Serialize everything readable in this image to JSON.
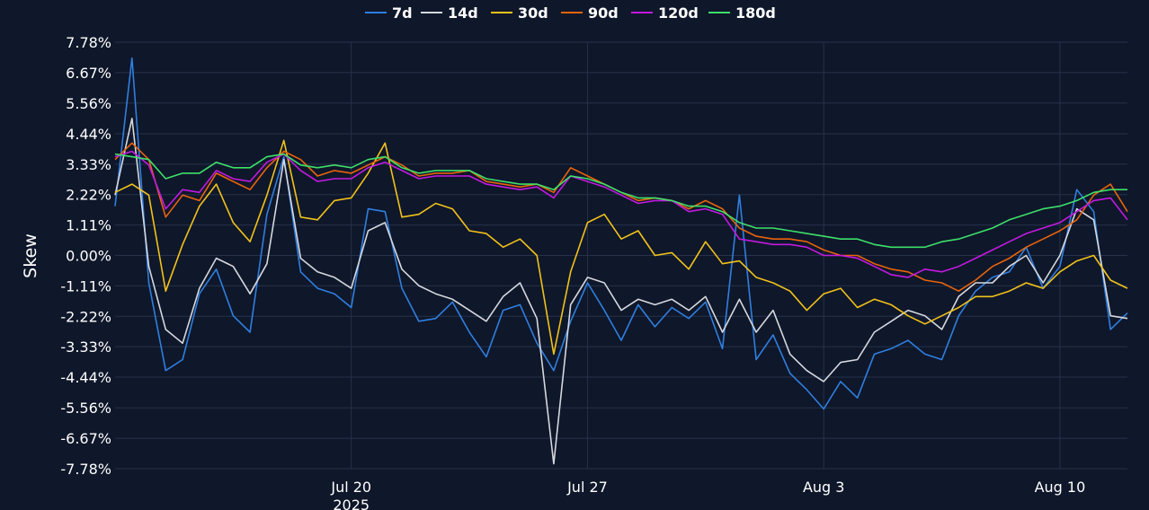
{
  "chart_data": {
    "type": "line",
    "title": "",
    "xlabel": "",
    "ylabel": "Skew",
    "legend_position": "top-center",
    "grid": true,
    "background": "#0f172a",
    "x_range": [
      "2025-07-13",
      "2025-08-12"
    ],
    "ylim": [
      -7.78,
      7.78
    ],
    "y_ticks": [
      "7.78%",
      "6.67%",
      "5.56%",
      "4.44%",
      "3.33%",
      "2.22%",
      "1.11%",
      "0.00%",
      "-1.11%",
      "-2.22%",
      "-3.33%",
      "-4.44%",
      "-5.56%",
      "-6.67%",
      "-7.78%"
    ],
    "x_ticks": [
      {
        "date": "2025-07-20",
        "label": "Jul 20",
        "sublabel": "2025"
      },
      {
        "date": "2025-07-27",
        "label": "Jul 27",
        "sublabel": ""
      },
      {
        "date": "2025-08-03",
        "label": "Aug 3",
        "sublabel": ""
      },
      {
        "date": "2025-08-10",
        "label": "Aug 10",
        "sublabel": ""
      }
    ],
    "series": [
      {
        "name": "7d",
        "color": "#2f7fe0",
        "x": [
          "2025-07-13",
          "2025-07-13T12:00",
          "2025-07-14",
          "2025-07-14T12:00",
          "2025-07-15",
          "2025-07-15T12:00",
          "2025-07-16",
          "2025-07-16T12:00",
          "2025-07-17",
          "2025-07-17T12:00",
          "2025-07-18",
          "2025-07-18T12:00",
          "2025-07-19",
          "2025-07-19T12:00",
          "2025-07-20",
          "2025-07-20T12:00",
          "2025-07-21",
          "2025-07-21T12:00",
          "2025-07-22",
          "2025-07-22T12:00",
          "2025-07-23",
          "2025-07-23T12:00",
          "2025-07-24",
          "2025-07-24T12:00",
          "2025-07-25",
          "2025-07-25T12:00",
          "2025-07-26",
          "2025-07-26T12:00",
          "2025-07-27",
          "2025-07-27T12:00",
          "2025-07-28",
          "2025-07-28T12:00",
          "2025-07-29",
          "2025-07-29T12:00",
          "2025-07-30",
          "2025-07-30T12:00",
          "2025-07-31",
          "2025-07-31T12:00",
          "2025-08-01",
          "2025-08-01T12:00",
          "2025-08-02",
          "2025-08-02T12:00",
          "2025-08-03",
          "2025-08-03T12:00",
          "2025-08-04",
          "2025-08-04T12:00",
          "2025-08-05",
          "2025-08-05T12:00",
          "2025-08-06",
          "2025-08-06T12:00",
          "2025-08-07",
          "2025-08-07T12:00",
          "2025-08-08",
          "2025-08-08T12:00",
          "2025-08-09",
          "2025-08-09T12:00",
          "2025-08-10",
          "2025-08-10T12:00",
          "2025-08-11",
          "2025-08-11T12:00",
          "2025-08-12"
        ],
        "values": [
          1.8,
          7.2,
          -1.0,
          -4.2,
          -3.8,
          -1.4,
          -0.5,
          -2.2,
          -2.8,
          1.5,
          3.6,
          -0.6,
          -1.2,
          -1.4,
          -1.9,
          1.7,
          1.6,
          -1.2,
          -2.4,
          -2.3,
          -1.7,
          -2.8,
          -3.7,
          -2.0,
          -1.8,
          -3.2,
          -4.2,
          -2.4,
          -1.0,
          -2.0,
          -3.1,
          -1.8,
          -2.6,
          -1.9,
          -2.3,
          -1.7,
          -3.4,
          2.2,
          -3.8,
          -2.9,
          -4.3,
          -4.9,
          -5.6,
          -4.6,
          -5.2,
          -3.6,
          -3.4,
          -3.1,
          -3.6,
          -3.8,
          -2.2,
          -1.3,
          -0.8,
          -0.6,
          0.3,
          -1.2,
          -0.4,
          2.4,
          1.6,
          -2.7,
          -2.1
        ]
      },
      {
        "name": "14d",
        "color": "#d5d8de",
        "x": [
          "2025-07-13",
          "2025-07-13T12:00",
          "2025-07-14",
          "2025-07-14T12:00",
          "2025-07-15",
          "2025-07-15T12:00",
          "2025-07-16",
          "2025-07-16T12:00",
          "2025-07-17",
          "2025-07-17T12:00",
          "2025-07-18",
          "2025-07-18T12:00",
          "2025-07-19",
          "2025-07-19T12:00",
          "2025-07-20",
          "2025-07-20T12:00",
          "2025-07-21",
          "2025-07-21T12:00",
          "2025-07-22",
          "2025-07-22T12:00",
          "2025-07-23",
          "2025-07-23T12:00",
          "2025-07-24",
          "2025-07-24T12:00",
          "2025-07-25",
          "2025-07-25T12:00",
          "2025-07-26",
          "2025-07-26T12:00",
          "2025-07-27",
          "2025-07-27T12:00",
          "2025-07-28",
          "2025-07-28T12:00",
          "2025-07-29",
          "2025-07-29T12:00",
          "2025-07-30",
          "2025-07-30T12:00",
          "2025-07-31",
          "2025-07-31T12:00",
          "2025-08-01",
          "2025-08-01T12:00",
          "2025-08-02",
          "2025-08-02T12:00",
          "2025-08-03",
          "2025-08-03T12:00",
          "2025-08-04",
          "2025-08-04T12:00",
          "2025-08-05",
          "2025-08-05T12:00",
          "2025-08-06",
          "2025-08-06T12:00",
          "2025-08-07",
          "2025-08-07T12:00",
          "2025-08-08",
          "2025-08-08T12:00",
          "2025-08-09",
          "2025-08-09T12:00",
          "2025-08-10",
          "2025-08-10T12:00",
          "2025-08-11",
          "2025-08-11T12:00",
          "2025-08-12"
        ],
        "values": [
          2.2,
          5.0,
          -0.4,
          -2.7,
          -3.2,
          -1.2,
          -0.1,
          -0.4,
          -1.4,
          -0.3,
          3.5,
          -0.1,
          -0.6,
          -0.8,
          -1.2,
          0.9,
          1.2,
          -0.5,
          -1.1,
          -1.4,
          -1.6,
          -2.0,
          -2.4,
          -1.5,
          -1.0,
          -2.3,
          -7.6,
          -1.8,
          -0.8,
          -1.0,
          -2.0,
          -1.6,
          -1.8,
          -1.6,
          -2.0,
          -1.5,
          -2.8,
          -1.6,
          -2.8,
          -2.0,
          -3.6,
          -4.2,
          -4.6,
          -3.9,
          -3.8,
          -2.8,
          -2.4,
          -2.0,
          -2.2,
          -2.7,
          -1.5,
          -1.0,
          -1.0,
          -0.4,
          0.0,
          -1.0,
          0.0,
          1.7,
          1.3,
          -2.2,
          -2.3
        ]
      },
      {
        "name": "30d",
        "color": "#f1c21b",
        "x": [
          "2025-07-13",
          "2025-07-13T12:00",
          "2025-07-14",
          "2025-07-14T12:00",
          "2025-07-15",
          "2025-07-15T12:00",
          "2025-07-16",
          "2025-07-16T12:00",
          "2025-07-17",
          "2025-07-17T12:00",
          "2025-07-18",
          "2025-07-18T12:00",
          "2025-07-19",
          "2025-07-19T12:00",
          "2025-07-20",
          "2025-07-20T12:00",
          "2025-07-21",
          "2025-07-21T12:00",
          "2025-07-22",
          "2025-07-22T12:00",
          "2025-07-23",
          "2025-07-23T12:00",
          "2025-07-24",
          "2025-07-24T12:00",
          "2025-07-25",
          "2025-07-25T12:00",
          "2025-07-26",
          "2025-07-26T12:00",
          "2025-07-27",
          "2025-07-27T12:00",
          "2025-07-28",
          "2025-07-28T12:00",
          "2025-07-29",
          "2025-07-29T12:00",
          "2025-07-30",
          "2025-07-30T12:00",
          "2025-07-31",
          "2025-07-31T12:00",
          "2025-08-01",
          "2025-08-01T12:00",
          "2025-08-02",
          "2025-08-02T12:00",
          "2025-08-03",
          "2025-08-03T12:00",
          "2025-08-04",
          "2025-08-04T12:00",
          "2025-08-05",
          "2025-08-05T12:00",
          "2025-08-06",
          "2025-08-06T12:00",
          "2025-08-07",
          "2025-08-07T12:00",
          "2025-08-08",
          "2025-08-08T12:00",
          "2025-08-09",
          "2025-08-09T12:00",
          "2025-08-10",
          "2025-08-10T12:00",
          "2025-08-11",
          "2025-08-11T12:00",
          "2025-08-12"
        ],
        "values": [
          2.3,
          2.6,
          2.2,
          -1.3,
          0.4,
          1.8,
          2.6,
          1.2,
          0.5,
          2.2,
          4.2,
          1.4,
          1.3,
          2.0,
          2.1,
          3.0,
          4.1,
          1.4,
          1.5,
          1.9,
          1.7,
          0.9,
          0.8,
          0.3,
          0.6,
          0.0,
          -3.6,
          -0.6,
          1.2,
          1.5,
          0.6,
          0.9,
          0.0,
          0.1,
          -0.5,
          0.5,
          -0.3,
          -0.2,
          -0.8,
          -1.0,
          -1.3,
          -2.0,
          -1.4,
          -1.2,
          -1.9,
          -1.6,
          -1.8,
          -2.2,
          -2.5,
          -2.2,
          -1.9,
          -1.5,
          -1.5,
          -1.3,
          -1.0,
          -1.2,
          -0.6,
          -0.2,
          0.0,
          -0.9,
          -1.2
        ]
      },
      {
        "name": "90d",
        "color": "#e8640c",
        "x": [
          "2025-07-13",
          "2025-07-13T12:00",
          "2025-07-14",
          "2025-07-14T12:00",
          "2025-07-15",
          "2025-07-15T12:00",
          "2025-07-16",
          "2025-07-16T12:00",
          "2025-07-17",
          "2025-07-17T12:00",
          "2025-07-18",
          "2025-07-18T12:00",
          "2025-07-19",
          "2025-07-19T12:00",
          "2025-07-20",
          "2025-07-20T12:00",
          "2025-07-21",
          "2025-07-21T12:00",
          "2025-07-22",
          "2025-07-22T12:00",
          "2025-07-23",
          "2025-07-23T12:00",
          "2025-07-24",
          "2025-07-24T12:00",
          "2025-07-25",
          "2025-07-25T12:00",
          "2025-07-26",
          "2025-07-26T12:00",
          "2025-07-27",
          "2025-07-27T12:00",
          "2025-07-28",
          "2025-07-28T12:00",
          "2025-07-29",
          "2025-07-29T12:00",
          "2025-07-30",
          "2025-07-30T12:00",
          "2025-07-31",
          "2025-07-31T12:00",
          "2025-08-01",
          "2025-08-01T12:00",
          "2025-08-02",
          "2025-08-02T12:00",
          "2025-08-03",
          "2025-08-03T12:00",
          "2025-08-04",
          "2025-08-04T12:00",
          "2025-08-05",
          "2025-08-05T12:00",
          "2025-08-06",
          "2025-08-06T12:00",
          "2025-08-07",
          "2025-08-07T12:00",
          "2025-08-08",
          "2025-08-08T12:00",
          "2025-08-09",
          "2025-08-09T12:00",
          "2025-08-10",
          "2025-08-10T12:00",
          "2025-08-11",
          "2025-08-11T12:00",
          "2025-08-12"
        ],
        "values": [
          3.5,
          4.1,
          3.5,
          1.4,
          2.2,
          2.0,
          3.0,
          2.7,
          2.4,
          3.2,
          3.8,
          3.5,
          2.9,
          3.1,
          3.0,
          3.3,
          3.6,
          3.3,
          2.9,
          3.0,
          3.0,
          3.1,
          2.7,
          2.6,
          2.5,
          2.6,
          2.3,
          3.2,
          2.9,
          2.6,
          2.3,
          2.0,
          2.1,
          2.0,
          1.7,
          2.0,
          1.7,
          1.0,
          0.7,
          0.6,
          0.6,
          0.5,
          0.2,
          0.0,
          0.0,
          -0.3,
          -0.5,
          -0.6,
          -0.9,
          -1.0,
          -1.3,
          -0.9,
          -0.4,
          -0.1,
          0.3,
          0.6,
          0.9,
          1.3,
          2.2,
          2.6,
          1.6
        ]
      },
      {
        "name": "120d",
        "color": "#c21ae0",
        "x": [
          "2025-07-13",
          "2025-07-13T12:00",
          "2025-07-14",
          "2025-07-14T12:00",
          "2025-07-15",
          "2025-07-15T12:00",
          "2025-07-16",
          "2025-07-16T12:00",
          "2025-07-17",
          "2025-07-17T12:00",
          "2025-07-18",
          "2025-07-18T12:00",
          "2025-07-19",
          "2025-07-19T12:00",
          "2025-07-20",
          "2025-07-20T12:00",
          "2025-07-21",
          "2025-07-21T12:00",
          "2025-07-22",
          "2025-07-22T12:00",
          "2025-07-23",
          "2025-07-23T12:00",
          "2025-07-24",
          "2025-07-24T12:00",
          "2025-07-25",
          "2025-07-25T12:00",
          "2025-07-26",
          "2025-07-26T12:00",
          "2025-07-27",
          "2025-07-27T12:00",
          "2025-07-28",
          "2025-07-28T12:00",
          "2025-07-29",
          "2025-07-29T12:00",
          "2025-07-30",
          "2025-07-30T12:00",
          "2025-07-31",
          "2025-07-31T12:00",
          "2025-08-01",
          "2025-08-01T12:00",
          "2025-08-02",
          "2025-08-02T12:00",
          "2025-08-03",
          "2025-08-03T12:00",
          "2025-08-04",
          "2025-08-04T12:00",
          "2025-08-05",
          "2025-08-05T12:00",
          "2025-08-06",
          "2025-08-06T12:00",
          "2025-08-07",
          "2025-08-07T12:00",
          "2025-08-08",
          "2025-08-08T12:00",
          "2025-08-09",
          "2025-08-09T12:00",
          "2025-08-10",
          "2025-08-10T12:00",
          "2025-08-11",
          "2025-08-11T12:00",
          "2025-08-12"
        ],
        "values": [
          3.6,
          3.8,
          3.3,
          1.7,
          2.4,
          2.3,
          3.1,
          2.8,
          2.7,
          3.4,
          3.7,
          3.1,
          2.7,
          2.8,
          2.8,
          3.2,
          3.4,
          3.1,
          2.8,
          2.9,
          2.9,
          2.9,
          2.6,
          2.5,
          2.4,
          2.5,
          2.1,
          2.9,
          2.7,
          2.5,
          2.2,
          1.9,
          2.0,
          2.0,
          1.6,
          1.7,
          1.5,
          0.6,
          0.5,
          0.4,
          0.4,
          0.3,
          0.0,
          0.0,
          -0.1,
          -0.4,
          -0.7,
          -0.8,
          -0.5,
          -0.6,
          -0.4,
          -0.1,
          0.2,
          0.5,
          0.8,
          1.0,
          1.2,
          1.6,
          2.0,
          2.1,
          1.3
        ]
      },
      {
        "name": "180d",
        "color": "#3ee06a",
        "x": [
          "2025-07-13",
          "2025-07-13T12:00",
          "2025-07-14",
          "2025-07-14T12:00",
          "2025-07-15",
          "2025-07-15T12:00",
          "2025-07-16",
          "2025-07-16T12:00",
          "2025-07-17",
          "2025-07-17T12:00",
          "2025-07-18",
          "2025-07-18T12:00",
          "2025-07-19",
          "2025-07-19T12:00",
          "2025-07-20",
          "2025-07-20T12:00",
          "2025-07-21",
          "2025-07-21T12:00",
          "2025-07-22",
          "2025-07-22T12:00",
          "2025-07-23",
          "2025-07-23T12:00",
          "2025-07-24",
          "2025-07-24T12:00",
          "2025-07-25",
          "2025-07-25T12:00",
          "2025-07-26",
          "2025-07-26T12:00",
          "2025-07-27",
          "2025-07-27T12:00",
          "2025-07-28",
          "2025-07-28T12:00",
          "2025-07-29",
          "2025-07-29T12:00",
          "2025-07-30",
          "2025-07-30T12:00",
          "2025-07-31",
          "2025-07-31T12:00",
          "2025-08-01",
          "2025-08-01T12:00",
          "2025-08-02",
          "2025-08-02T12:00",
          "2025-08-03",
          "2025-08-03T12:00",
          "2025-08-04",
          "2025-08-04T12:00",
          "2025-08-05",
          "2025-08-05T12:00",
          "2025-08-06",
          "2025-08-06T12:00",
          "2025-08-07",
          "2025-08-07T12:00",
          "2025-08-08",
          "2025-08-08T12:00",
          "2025-08-09",
          "2025-08-09T12:00",
          "2025-08-10",
          "2025-08-10T12:00",
          "2025-08-11",
          "2025-08-11T12:00",
          "2025-08-12"
        ],
        "values": [
          3.7,
          3.6,
          3.5,
          2.8,
          3.0,
          3.0,
          3.4,
          3.2,
          3.2,
          3.6,
          3.7,
          3.3,
          3.2,
          3.3,
          3.2,
          3.5,
          3.6,
          3.2,
          3.0,
          3.1,
          3.1,
          3.1,
          2.8,
          2.7,
          2.6,
          2.6,
          2.4,
          2.9,
          2.8,
          2.6,
          2.3,
          2.1,
          2.1,
          2.0,
          1.8,
          1.8,
          1.6,
          1.2,
          1.0,
          1.0,
          0.9,
          0.8,
          0.7,
          0.6,
          0.6,
          0.4,
          0.3,
          0.3,
          0.3,
          0.5,
          0.6,
          0.8,
          1.0,
          1.3,
          1.5,
          1.7,
          1.8,
          2.0,
          2.3,
          2.4,
          2.4
        ]
      }
    ]
  }
}
